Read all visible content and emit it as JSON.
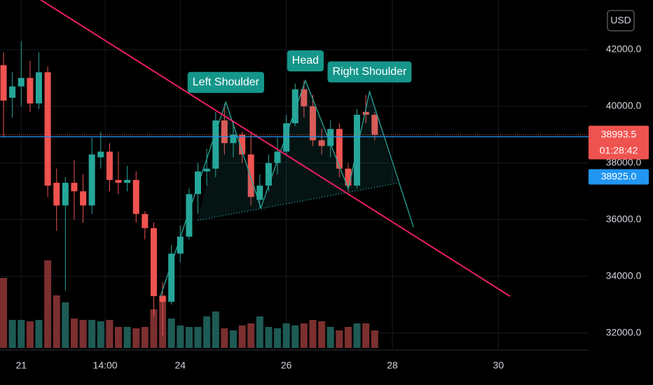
{
  "chart_data": {
    "type": "candlestick",
    "currency": "USD",
    "x": [
      20.667,
      20.833,
      21,
      21.167,
      21.333,
      21.5,
      21.667,
      21.833,
      22,
      22.167,
      22.333,
      22.5,
      22.667,
      22.833,
      23,
      23.167,
      23.333,
      23.5,
      23.667,
      23.833,
      24,
      24.167,
      24.333,
      24.5,
      24.667,
      24.833,
      25,
      25.167,
      25.333,
      25.5,
      25.667,
      25.833,
      26,
      26.167,
      26.333,
      26.5,
      26.667,
      26.833,
      27,
      27.167,
      27.333,
      27.5,
      27.667
    ],
    "open": [
      41450,
      40300,
      40700,
      41000,
      40100,
      41200,
      37300,
      36500,
      37300,
      37000,
      36500,
      38200,
      38400,
      37400,
      37300,
      37400,
      36200,
      35700,
      33300,
      33100,
      34800,
      35400,
      36900,
      37700,
      37800,
      39500,
      38700,
      39000,
      38300,
      36700,
      37200,
      38000,
      38400,
      39400,
      40600,
      40000,
      38800,
      38600,
      39200,
      37800,
      37200,
      39800,
      39700
    ],
    "high": [
      41900,
      41200,
      42300,
      41600,
      41900,
      41400,
      37800,
      37500,
      38100,
      37600,
      38900,
      39100,
      38700,
      38400,
      37900,
      37700,
      36300,
      35900,
      33800,
      35100,
      35800,
      37100,
      38000,
      38500,
      39800,
      40100,
      39500,
      39100,
      39100,
      37600,
      38300,
      38900,
      39700,
      40800,
      40900,
      40400,
      39200,
      39500,
      39400,
      38000,
      39900,
      40400,
      39800
    ],
    "low": [
      38900,
      39600,
      40000,
      39800,
      39900,
      36800,
      35600,
      33500,
      36000,
      35900,
      36200,
      37800,
      37000,
      36900,
      37000,
      35900,
      35300,
      32600,
      31900,
      33000,
      34500,
      35300,
      36200,
      37200,
      37500,
      38300,
      38200,
      38000,
      36500,
      36400,
      37000,
      37600,
      38300,
      39300,
      39600,
      38600,
      38300,
      38200,
      37500,
      37000,
      37100,
      39400,
      38800
    ],
    "close": [
      40200,
      40700,
      41000,
      40100,
      41200,
      37200,
      36500,
      37300,
      37000,
      36500,
      38300,
      38400,
      37400,
      37300,
      37400,
      36200,
      35700,
      33300,
      33100,
      34800,
      35400,
      36900,
      37700,
      37800,
      39500,
      38700,
      39000,
      38300,
      36800,
      37200,
      38000,
      38400,
      39400,
      40600,
      40000,
      38800,
      38600,
      39200,
      37800,
      37200,
      39700,
      39700,
      38993.5
    ],
    "volume": [
      100,
      40,
      40,
      38,
      40,
      125,
      75,
      65,
      42,
      40,
      40,
      38,
      40,
      30,
      30,
      28,
      30,
      55,
      75,
      42,
      32,
      30,
      30,
      45,
      52,
      28,
      25,
      32,
      35,
      45,
      30,
      28,
      35,
      32,
      35,
      40,
      38,
      30,
      25,
      30,
      35,
      35,
      25
    ],
    "up_color": "#26a69a",
    "down_color": "#ef5350",
    "up_volume_color": "#1e5b55",
    "down_volume_color": "#7b2f2f",
    "xlim": [
      20.6,
      31.7
    ],
    "xticks": [
      21,
      {
        "value": 22.583,
        "label": "14:00"
      },
      24,
      26,
      28,
      30
    ],
    "ylim": [
      31400,
      43750
    ],
    "yticks": [
      {
        "value": 32000,
        "label": "32000.0"
      },
      {
        "value": 34000,
        "label": "34000.0"
      },
      {
        "value": 36000,
        "label": "36000.0"
      },
      {
        "value": 38000,
        "label": "38000.0"
      },
      {
        "value": 40000,
        "label": "40000.0"
      },
      {
        "value": 42000,
        "label": "42000.0"
      }
    ],
    "grid": true,
    "last_price": {
      "value": 38993.5,
      "label": "38993.5",
      "countdown": "01:28:42",
      "color": "#ef5350"
    },
    "bid_price": {
      "value": 38925,
      "label": "38925.0",
      "color": "#2196f3"
    },
    "trendline": {
      "x": [
        21.37,
        30.22
      ],
      "y": [
        43753,
        33296
      ],
      "color": "#e91e63"
    },
    "pattern": {
      "x": [
        23.62,
        24.86,
        25.52,
        26.36,
        27.17,
        27.57,
        28.4
      ],
      "y": [
        33260,
        40150,
        36420,
        40910,
        37090,
        40520,
        35730
      ],
      "color": "#26a69a"
    },
    "neckline": {
      "x": [
        24.33,
        28.09
      ],
      "y": [
        35975,
        37285
      ]
    },
    "annotations": [
      {
        "text": "Left Shoulder",
        "point": 1
      },
      {
        "text": "Head",
        "point": 3
      },
      {
        "text": "Right Shoulder",
        "point": 5
      }
    ]
  }
}
